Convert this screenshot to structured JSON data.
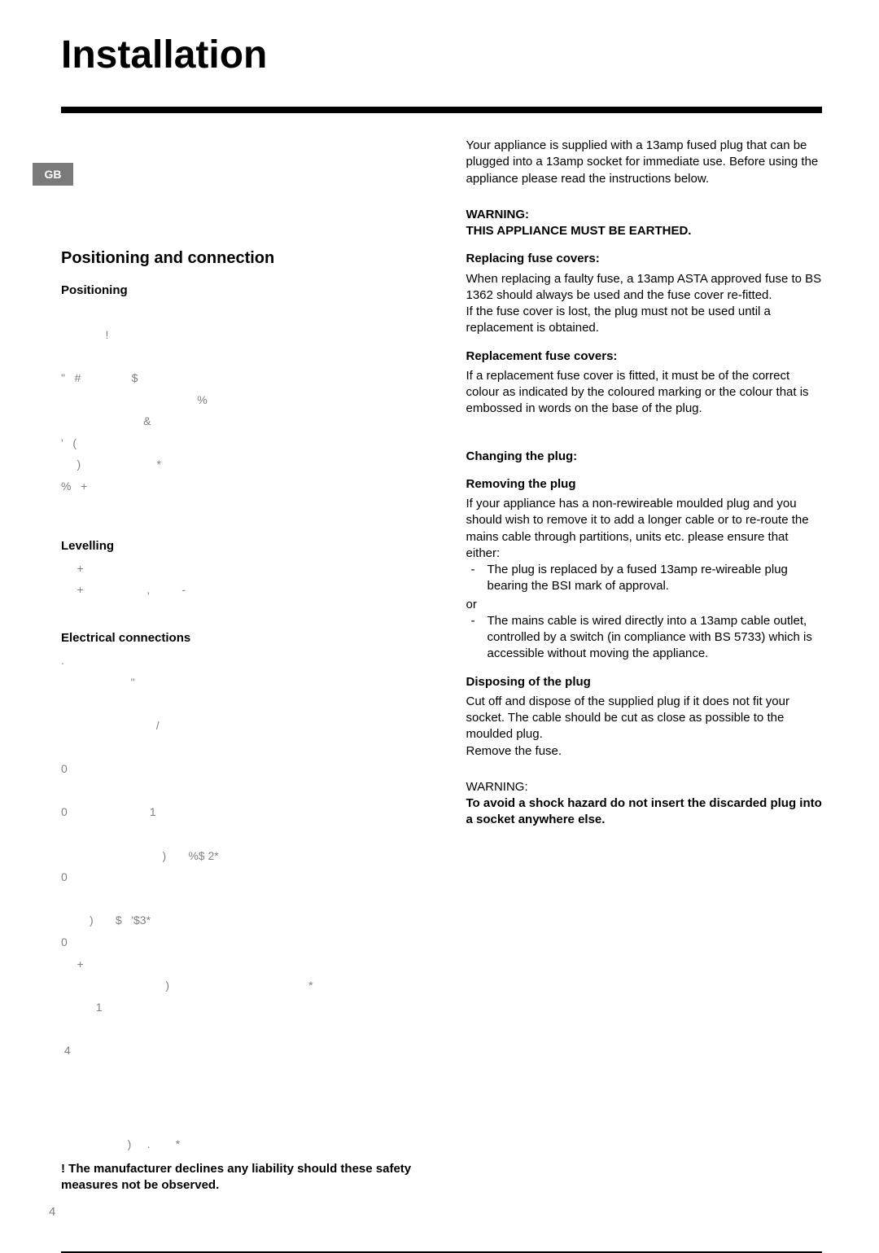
{
  "title": "Installation",
  "badge": "GB",
  "left": {
    "heading": "Positioning and connection",
    "positioning_h": "Positioning",
    "sym_block_1": "\n              !\n\n\"   #                $\n                                           %\n                          &\n'   (\n     )                        *\n%   +",
    "levelling_h": "Levelling",
    "sym_block_2": "     +\n     +                    ,          -",
    "electrical_h": "Electrical connections",
    "sym_block_3": ".\n                      \"\n\n                              /\n\n0\n\n0                          1\n\n                                )       %$ 2*\n0\n\n         )       $   '$3*\n0\n     +\n                                 )                                            *\n           1\n\n 4",
    "sym_block_4": "                     )     .        *",
    "footer_bold": "! The manufacturer declines any liability should these safety measures not be observed."
  },
  "right": {
    "intro": "Your appliance is supplied with a 13amp fused plug that can be plugged into a 13amp socket for immediate use. Before using the appliance please read the instructions below.",
    "warning_h1": "WARNING:",
    "warning_h2": "THIS APPLIANCE MUST BE EARTHED.",
    "repl_fuse_h": "Replacing fuse covers:",
    "repl_fuse_p1": "When replacing a faulty fuse, a 13amp ASTA approved fuse to BS 1362 should always be used and the fuse cover re-fitted.",
    "repl_fuse_p2": "If the fuse cover is lost, the plug must not be used until a replacement is obtained.",
    "repl_cover_h": "Replacement fuse covers:",
    "repl_cover_p": "If a replacement fuse cover is fitted, it must be of the correct colour as indicated by the coloured marking or the colour that is embossed in words on the base of the plug.",
    "chg_plug_h": "Changing the plug:",
    "rem_plug_h": "Removing the plug",
    "rem_plug_p": "If your appliance has a non-rewireable moulded plug and you should wish to remove it to add a longer cable or to re-route the mains cable through partitions, units etc. please ensure that either:",
    "bullet1": "The plug is replaced by a fused 13amp re-wireable plug bearing the BSI mark of approval.",
    "or": "or",
    "bullet2": "The mains cable is wired directly into a 13amp cable outlet, controlled by a switch (in compliance with BS 5733) which is accessible without moving the appliance.",
    "disp_plug_h": "Disposing of the plug",
    "disp_plug_p1": "Cut off and dispose of the supplied plug if it does not fit your socket. The cable should be cut as close as possible to the moulded plug.",
    "disp_plug_p2": "Remove the fuse.",
    "warn2_h": "WARNING:",
    "warn2_p": "To avoid a shock hazard do not insert the discarded plug into a socket anywhere else."
  },
  "page_number": "4"
}
